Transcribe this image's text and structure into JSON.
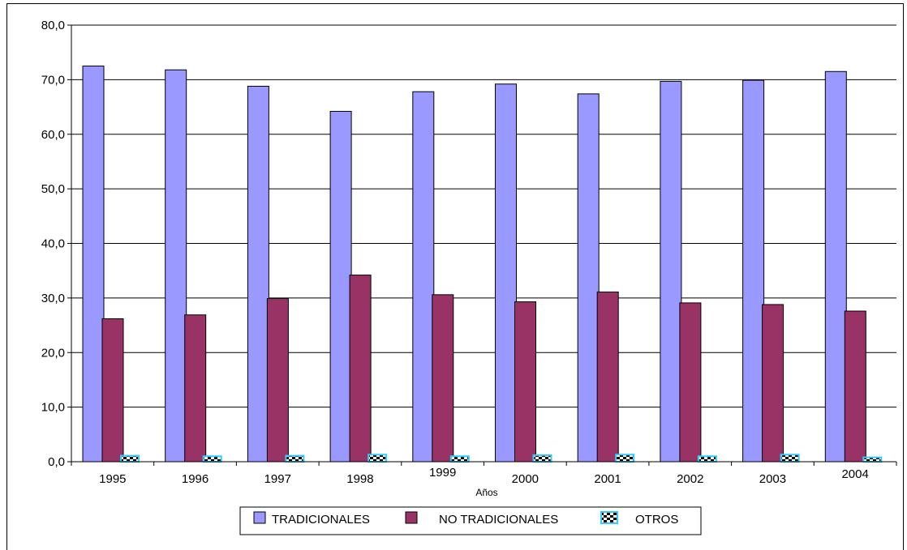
{
  "chart_data": {
    "type": "bar",
    "title": "",
    "xlabel": "Años",
    "ylabel": "",
    "ylim": [
      0,
      80
    ],
    "yticks": [
      "0,0",
      "10,0",
      "20,0",
      "30,0",
      "40,0",
      "50,0",
      "60,0",
      "70,0",
      "80,0"
    ],
    "categories": [
      "1995",
      "1996",
      "1997",
      "1998",
      "1999",
      "2000",
      "2001",
      "2002",
      "2003",
      "2004"
    ],
    "series": [
      {
        "name": "TRADICIONALES",
        "color": "#9999ff",
        "values": [
          72.5,
          71.8,
          68.8,
          64.2,
          67.8,
          69.2,
          67.4,
          69.7,
          69.9,
          71.5
        ]
      },
      {
        "name": "NO TRADICIONALES",
        "color": "#993366",
        "values": [
          26.2,
          26.9,
          29.9,
          34.2,
          30.6,
          29.3,
          31.1,
          29.1,
          28.8,
          27.6
        ]
      },
      {
        "name": "OTROS",
        "color": "#33ccff",
        "values": [
          1.1,
          1.0,
          1.1,
          1.3,
          1.0,
          1.2,
          1.3,
          1.0,
          1.3,
          0.8
        ]
      }
    ],
    "grid": true,
    "legend": "bottom"
  }
}
